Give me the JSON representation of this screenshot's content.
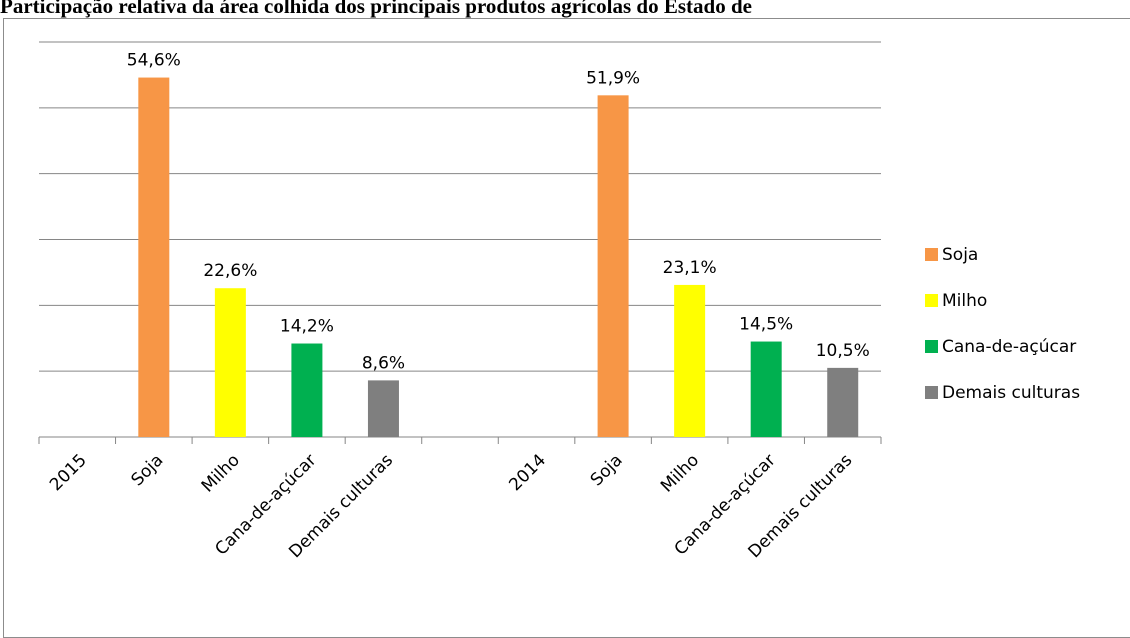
{
  "chart_data": {
    "type": "bar",
    "title": "Participação relativa da área colhida dos principais produtos agrícolas do Estado de",
    "xlabel": "",
    "ylabel": "",
    "ylim": [
      0,
      60
    ],
    "grid": true,
    "legend_position": "right",
    "categories": [
      "2015",
      "Soja",
      "Milho",
      "Cana-de-açúcar",
      "Demais culturas",
      "",
      "2014",
      "Soja",
      "Milho",
      "Cana-de-açúcar",
      "Demais culturas"
    ],
    "bars": [
      {
        "category_index": 1,
        "series": "Soja",
        "value": 54.6,
        "label": "54,6%"
      },
      {
        "category_index": 2,
        "series": "Milho",
        "value": 22.6,
        "label": "22,6%"
      },
      {
        "category_index": 3,
        "series": "Cana-de-açúcar",
        "value": 14.2,
        "label": "14,2%"
      },
      {
        "category_index": 4,
        "series": "Demais culturas",
        "value": 8.6,
        "label": "8,6%"
      },
      {
        "category_index": 7,
        "series": "Soja",
        "value": 51.9,
        "label": "51,9%"
      },
      {
        "category_index": 8,
        "series": "Milho",
        "value": 23.1,
        "label": "23,1%"
      },
      {
        "category_index": 9,
        "series": "Cana-de-açúcar",
        "value": 14.5,
        "label": "14,5%"
      },
      {
        "category_index": 10,
        "series": "Demais culturas",
        "value": 10.5,
        "label": "10,5%"
      }
    ],
    "legend": [
      {
        "name": "Soja",
        "color": "#f79646"
      },
      {
        "name": "Milho",
        "color": "#ffff00"
      },
      {
        "name": "Cana-de-açúcar",
        "color": "#00b050"
      },
      {
        "name": "Demais culturas",
        "color": "#7f7f7f"
      }
    ]
  }
}
